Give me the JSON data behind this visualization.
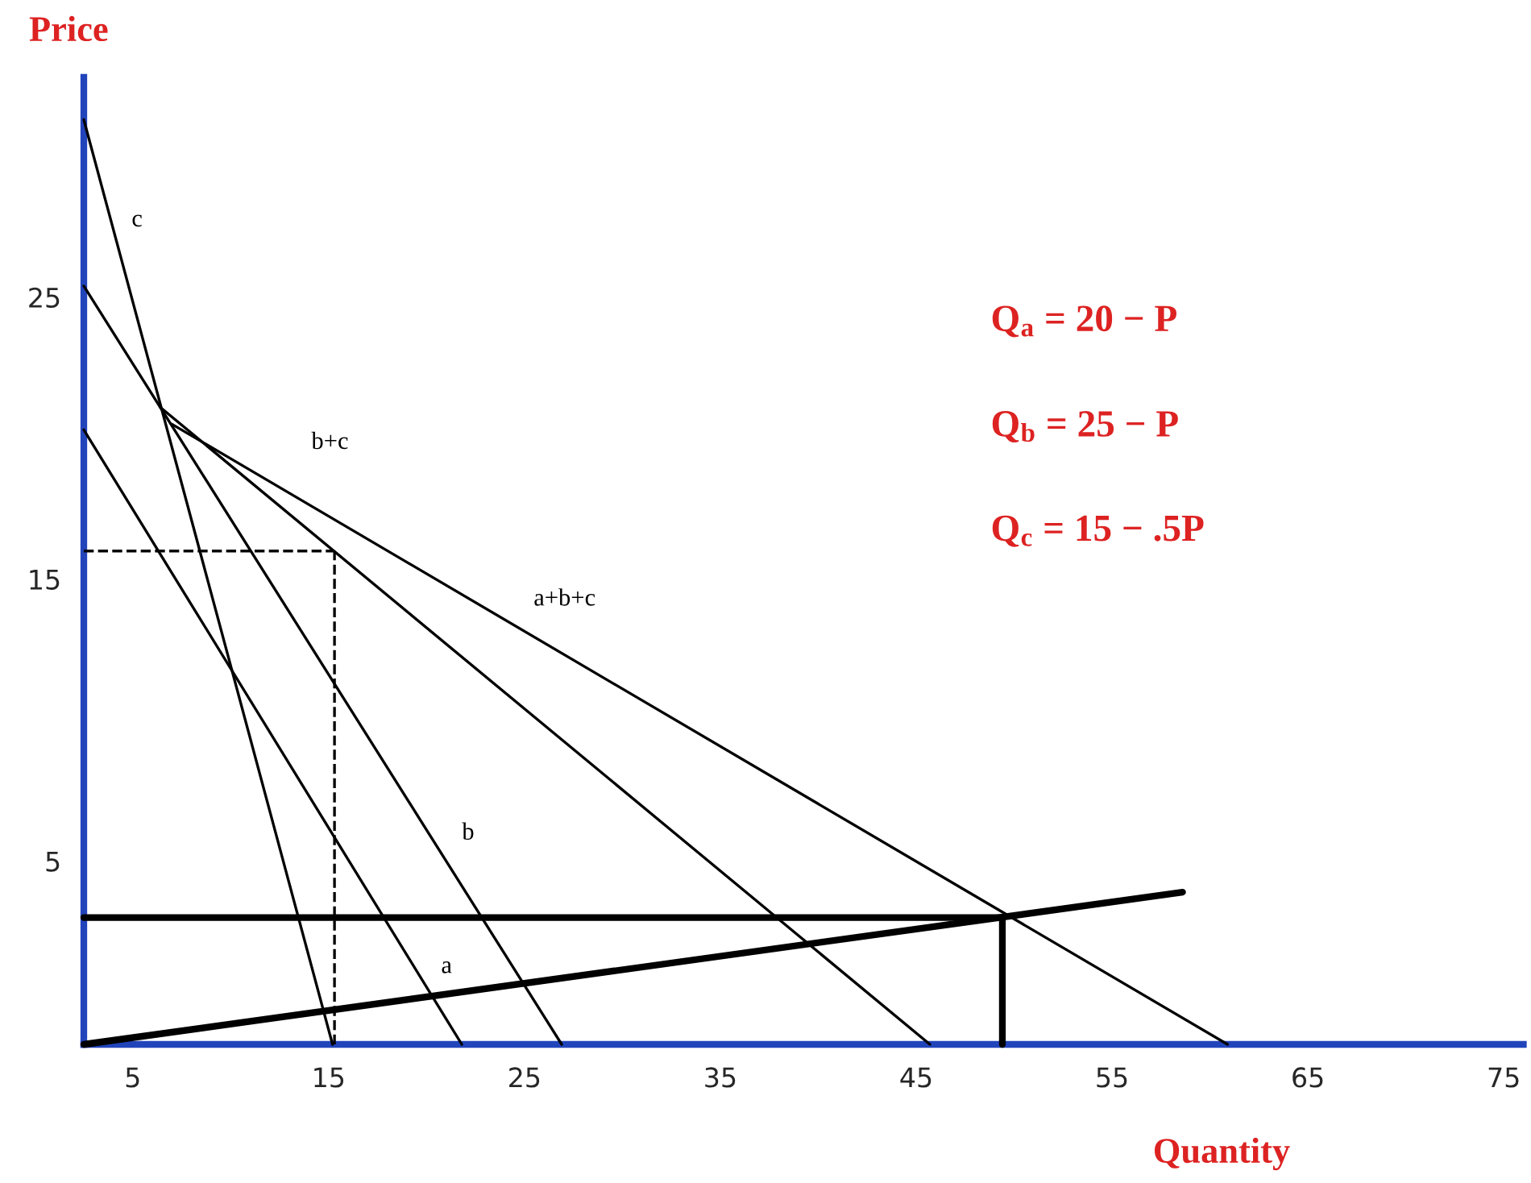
{
  "chart_data": {
    "type": "line",
    "xlabel": "Quantity",
    "ylabel": "Price",
    "xlim": [
      2.5,
      76
    ],
    "ylim": [
      -1.5,
      32.8
    ],
    "xticks": [
      5,
      15,
      25,
      35,
      45,
      55,
      65,
      75
    ],
    "yticks": [
      5,
      15,
      25
    ],
    "grid": false,
    "legend": false,
    "marker": "none",
    "series": [
      {
        "color": "#000000",
        "x": [
          2.5,
          15.2
        ],
        "values": [
          31.3,
          -1.5
        ]
      },
      {
        "color": "#000000",
        "x": [
          2.5,
          26.9
        ],
        "values": [
          25.4,
          -1.5
        ]
      },
      {
        "color": "#000000",
        "x": [
          2.5,
          21.8
        ],
        "values": [
          20.3,
          -1.5
        ]
      },
      {
        "color": "#000000",
        "x": [
          6.4,
          45.7
        ],
        "values": [
          21.1,
          -1.5
        ]
      },
      {
        "color": "#000000",
        "x": [
          7.0,
          60.9
        ],
        "values": [
          20.5,
          -1.5
        ]
      },
      {
        "color": "#000000",
        "x": [
          2.5,
          15.3
        ],
        "values": [
          16.0,
          16.0
        ],
        "line_style": "dashed"
      },
      {
        "color": "#000000",
        "x": [
          15.3,
          15.3
        ],
        "values": [
          -1.5,
          16.0
        ],
        "line_style": "dashed"
      },
      {
        "color": "#000000",
        "x": [
          2.5,
          58.6
        ],
        "values": [
          -1.5,
          3.9
        ]
      },
      {
        "color": "#000000",
        "x": [
          2.5,
          49.4
        ],
        "values": [
          3.0,
          3.0
        ]
      },
      {
        "color": "#000000",
        "x": [
          49.4,
          49.4
        ],
        "values": [
          -1.5,
          3.0
        ]
      }
    ],
    "annotations": [
      "c",
      "b+c",
      "a+b+c",
      "b",
      "a",
      "Q$_{a}$ = 20 − P",
      "Q$_{b}$ = 25 − P",
      "Q$_{c}$ = 15 − .5P"
    ]
  }
}
